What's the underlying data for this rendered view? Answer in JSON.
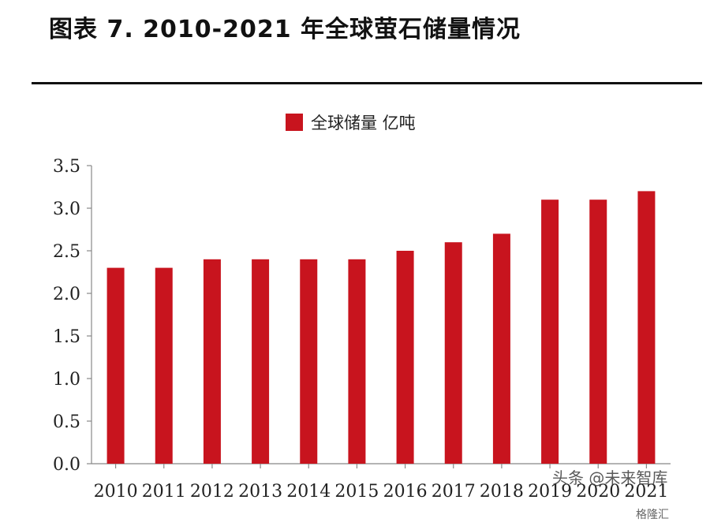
{
  "figure_title": "图表 7.   2010-2021 年全球萤石储量情况",
  "chart_data": {
    "type": "bar",
    "categories": [
      "2010",
      "2011",
      "2012",
      "2013",
      "2014",
      "2015",
      "2016",
      "2017",
      "2018",
      "2019",
      "2020",
      "2021"
    ],
    "series": [
      {
        "name": "全球储量  亿吨",
        "values": [
          2.3,
          2.3,
          2.4,
          2.4,
          2.4,
          2.4,
          2.5,
          2.6,
          2.7,
          3.1,
          3.1,
          3.2
        ]
      }
    ],
    "ylim": [
      0,
      3.5
    ],
    "yticks": [
      "0.0",
      "0.5",
      "1.0",
      "1.5",
      "2.0",
      "2.5",
      "3.0",
      "3.5"
    ],
    "grid": false,
    "legend_position": "top-center",
    "bar_color": "#c8141e"
  },
  "watermarks": {
    "source": "头条 @未来智库",
    "brand": "格隆汇"
  }
}
